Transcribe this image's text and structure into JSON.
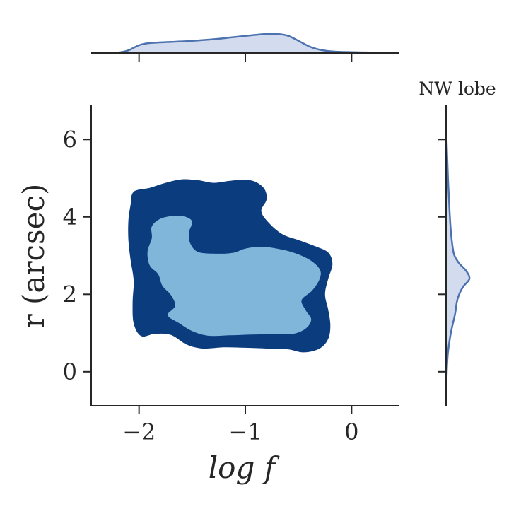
{
  "chart_data": {
    "type": "joint-kde",
    "panel_label": "NW lobe",
    "xlabel": "log f",
    "ylabel": "r (arcsec)",
    "xlim": [
      -2.45,
      0.45
    ],
    "ylim": [
      -0.88,
      6.9
    ],
    "x_ticks": [
      -2,
      -1,
      0
    ],
    "x_tick_labels": [
      "−2",
      "−1",
      "0"
    ],
    "y_ticks": [
      0,
      2,
      4,
      6
    ],
    "y_tick_labels": [
      "0",
      "2",
      "4",
      "6"
    ],
    "grid": false,
    "colors": {
      "outer_level": "#0b3c7d",
      "inner_level": "#7fb6d9",
      "marginal_line": "#4c72b0",
      "marginal_fill": "#d3dbee"
    },
    "contour_levels": [
      {
        "name": "outer",
        "points": [
          [
            -2.05,
            4.65
          ],
          [
            -1.9,
            4.75
          ],
          [
            -1.75,
            4.88
          ],
          [
            -1.6,
            4.97
          ],
          [
            -1.45,
            4.95
          ],
          [
            -1.3,
            4.88
          ],
          [
            -1.15,
            4.93
          ],
          [
            -1.0,
            4.96
          ],
          [
            -0.9,
            4.9
          ],
          [
            -0.82,
            4.72
          ],
          [
            -0.8,
            4.45
          ],
          [
            -0.85,
            4.15
          ],
          [
            -0.78,
            3.85
          ],
          [
            -0.65,
            3.55
          ],
          [
            -0.5,
            3.4
          ],
          [
            -0.35,
            3.25
          ],
          [
            -0.22,
            3.08
          ],
          [
            -0.18,
            2.78
          ],
          [
            -0.22,
            2.4
          ],
          [
            -0.25,
            2.0
          ],
          [
            -0.22,
            1.6
          ],
          [
            -0.2,
            1.2
          ],
          [
            -0.22,
            0.85
          ],
          [
            -0.3,
            0.6
          ],
          [
            -0.45,
            0.5
          ],
          [
            -0.6,
            0.58
          ],
          [
            -0.8,
            0.6
          ],
          [
            -1.0,
            0.62
          ],
          [
            -1.2,
            0.63
          ],
          [
            -1.4,
            0.6
          ],
          [
            -1.55,
            0.7
          ],
          [
            -1.7,
            0.95
          ],
          [
            -1.85,
            0.98
          ],
          [
            -1.98,
            0.92
          ],
          [
            -2.05,
            1.25
          ],
          [
            -2.06,
            1.8
          ],
          [
            -2.05,
            2.35
          ],
          [
            -2.08,
            2.9
          ],
          [
            -2.1,
            3.4
          ],
          [
            -2.1,
            3.9
          ],
          [
            -2.08,
            4.3
          ]
        ]
      },
      {
        "name": "inner",
        "points": [
          [
            -1.88,
            3.75
          ],
          [
            -1.8,
            3.95
          ],
          [
            -1.67,
            4.03
          ],
          [
            -1.56,
            4.0
          ],
          [
            -1.5,
            3.87
          ],
          [
            -1.53,
            3.6
          ],
          [
            -1.52,
            3.33
          ],
          [
            -1.45,
            3.1
          ],
          [
            -1.3,
            3.05
          ],
          [
            -1.12,
            3.07
          ],
          [
            -1.0,
            3.18
          ],
          [
            -0.85,
            3.23
          ],
          [
            -0.7,
            3.18
          ],
          [
            -0.55,
            3.08
          ],
          [
            -0.4,
            2.9
          ],
          [
            -0.3,
            2.65
          ],
          [
            -0.3,
            2.4
          ],
          [
            -0.37,
            2.1
          ],
          [
            -0.47,
            1.85
          ],
          [
            -0.43,
            1.58
          ],
          [
            -0.38,
            1.35
          ],
          [
            -0.43,
            1.12
          ],
          [
            -0.55,
            0.98
          ],
          [
            -0.75,
            0.97
          ],
          [
            -0.95,
            0.96
          ],
          [
            -1.15,
            0.94
          ],
          [
            -1.35,
            0.93
          ],
          [
            -1.5,
            1.05
          ],
          [
            -1.62,
            1.25
          ],
          [
            -1.73,
            1.46
          ],
          [
            -1.66,
            1.7
          ],
          [
            -1.7,
            1.98
          ],
          [
            -1.78,
            2.22
          ],
          [
            -1.82,
            2.52
          ],
          [
            -1.9,
            2.75
          ],
          [
            -1.92,
            3.1
          ],
          [
            -1.88,
            3.45
          ]
        ]
      }
    ],
    "marginal_x": {
      "x": [
        -2.35,
        -2.2,
        -2.1,
        -2.0,
        -1.9,
        -1.7,
        -1.5,
        -1.3,
        -1.1,
        -0.9,
        -0.8,
        -0.7,
        -0.6,
        -0.5,
        -0.4,
        -0.3,
        -0.2,
        -0.1,
        0.0,
        0.1,
        0.2,
        0.3
      ],
      "density": [
        0.0,
        0.02,
        0.12,
        0.35,
        0.45,
        0.5,
        0.55,
        0.62,
        0.72,
        0.82,
        0.86,
        0.86,
        0.78,
        0.55,
        0.3,
        0.15,
        0.08,
        0.05,
        0.04,
        0.03,
        0.02,
        0.0
      ]
    },
    "marginal_y": {
      "y": [
        -0.88,
        -0.5,
        0.0,
        0.5,
        1.0,
        1.5,
        1.8,
        2.0,
        2.2,
        2.4,
        2.6,
        2.8,
        3.0,
        3.2,
        3.5,
        4.0,
        4.5,
        5.0,
        5.5,
        6.0,
        6.5
      ],
      "density": [
        0.0,
        0.01,
        0.03,
        0.08,
        0.2,
        0.38,
        0.45,
        0.55,
        0.72,
        0.98,
        0.85,
        0.55,
        0.35,
        0.28,
        0.22,
        0.16,
        0.12,
        0.08,
        0.05,
        0.02,
        0.0
      ]
    }
  }
}
